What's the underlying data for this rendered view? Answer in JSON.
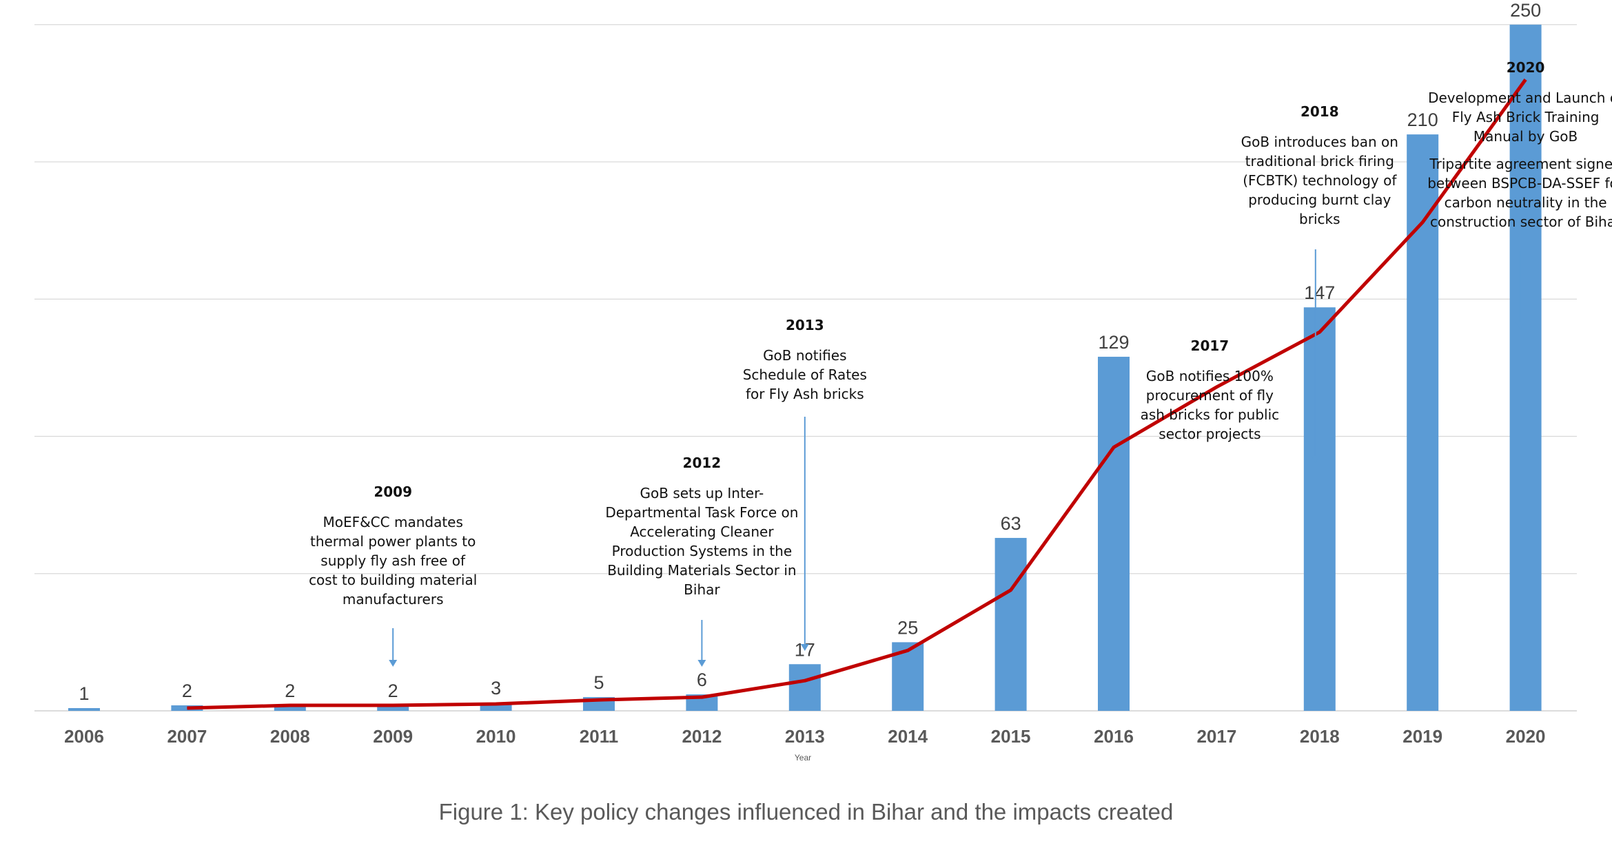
{
  "chart_data": {
    "type": "bar",
    "xlabel": "Year",
    "ylabel": "",
    "categories": [
      "2006",
      "2007",
      "2008",
      "2009",
      "2010",
      "2011",
      "2012",
      "2013",
      "2014",
      "2015",
      "2016",
      "2017",
      "2018",
      "2019",
      "2020"
    ],
    "values": [
      1,
      2,
      2,
      2,
      3,
      5,
      6,
      17,
      25,
      63,
      129,
      null,
      147,
      210,
      250
    ],
    "value_labels": [
      "1",
      "2",
      "2",
      "2",
      "3",
      "5",
      "6",
      "17",
      "25",
      "63",
      "129",
      "",
      "147",
      "210",
      "250"
    ],
    "trend": {
      "type": "line",
      "x": [
        "2007",
        "2008",
        "2009",
        "2010",
        "2011",
        "2012",
        "2013",
        "2014",
        "2015",
        "2016",
        "2017",
        "2018",
        "2019",
        "2020"
      ],
      "values": [
        1,
        2,
        2,
        2.5,
        4,
        5,
        11,
        22,
        44,
        96,
        118,
        138,
        178,
        230
      ]
    },
    "ylim": [
      0,
      300
    ],
    "grid": true,
    "bar_color": "#5b9bd5",
    "line_color": "#c00000",
    "annotations": [
      {
        "year": "2009",
        "title": "2009",
        "lines": [
          "MoEF&CC mandates",
          "thermal power plants to",
          "supply fly ash free of",
          "cost to building material",
          "manufacturers"
        ]
      },
      {
        "year": "2012",
        "title": "2012",
        "lines": [
          "GoB sets up Inter-",
          "Departmental Task Force on",
          "Accelerating Cleaner",
          "Production Systems in the",
          "Building Materials Sector in",
          "Bihar"
        ]
      },
      {
        "year": "2013",
        "title": "2013",
        "lines": [
          "GoB notifies",
          "Schedule of Rates",
          "for Fly Ash bricks"
        ]
      },
      {
        "year": "2017",
        "title": "2017",
        "lines": [
          "GoB notifies 100%",
          "procurement of fly",
          "ash bricks for public",
          "sector projects"
        ]
      },
      {
        "year": "2018",
        "title": "2018",
        "lines": [
          "GoB introduces ban on",
          "traditional brick firing",
          "(FCBTK) technology of",
          "producing burnt clay",
          "bricks"
        ]
      },
      {
        "year": "2020",
        "title": "2020",
        "lines": [
          "Development and Launch of",
          "Fly Ash Brick Training",
          "Manual by GoB"
        ],
        "lines2": [
          "Tripartite agreement signed",
          "between BSPCB-DA-SSEF for",
          "carbon neutrality in the",
          "construction sector of Bihar"
        ]
      }
    ]
  },
  "caption": "Figure 1: Key policy changes influenced in Bihar and the impacts created"
}
